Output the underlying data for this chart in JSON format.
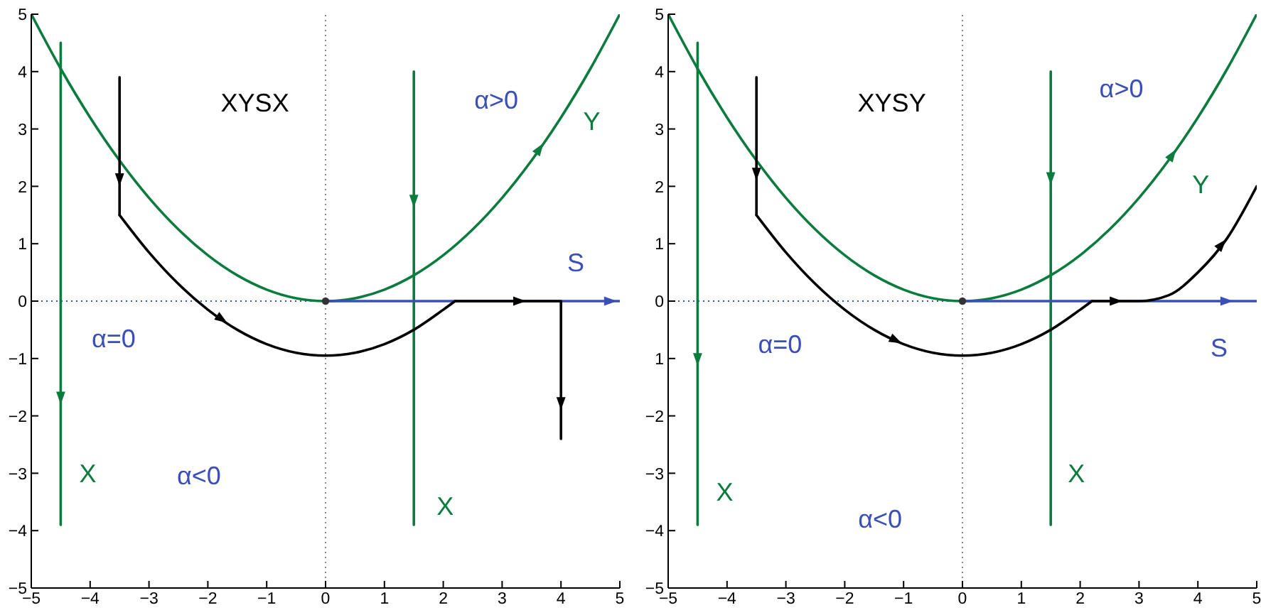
{
  "chart_data": [
    {
      "type": "line",
      "title": "XYSX",
      "xlim": [
        -5,
        5
      ],
      "ylim": [
        -5,
        5
      ],
      "xticks": [
        -5,
        -4,
        -3,
        -2,
        -1,
        0,
        1,
        2,
        3,
        4,
        5
      ],
      "yticks": [
        -5,
        -4,
        -3,
        -2,
        -1,
        0,
        1,
        2,
        3,
        4,
        5
      ],
      "marker": "none",
      "line_style": "solid",
      "ref_lines": [
        {
          "axis": "x",
          "value": 0,
          "color": "#888888",
          "line_style": "dotted"
        },
        {
          "axis": "y",
          "value": 0,
          "color": "#3a4fb8",
          "line_style": "dotted"
        }
      ],
      "series": [
        {
          "name": "Y",
          "color": "#0b7c3e",
          "x": [
            -5,
            -4.5,
            -4,
            -3.5,
            -3,
            -2.5,
            -2,
            -1.5,
            -1,
            -0.5,
            0,
            0.5,
            1,
            1.5,
            2,
            2.5,
            3,
            3.5,
            4,
            4.5,
            5
          ],
          "values": [
            5,
            4.05,
            3.2,
            2.45,
            1.8,
            1.25,
            0.8,
            0.45,
            0.2,
            0.05,
            0,
            0.05,
            0.2,
            0.45,
            0.8,
            1.25,
            1.8,
            2.45,
            3.2,
            4.05,
            5
          ]
        },
        {
          "name": "X",
          "color": "#0b7c3e",
          "x": [
            -4.5,
            -4.5
          ],
          "values": [
            4.5,
            -3.9
          ]
        },
        {
          "name": "X",
          "color": "#0b7c3e",
          "x": [
            1.5,
            1.5
          ],
          "values": [
            4,
            -3.9
          ]
        },
        {
          "name": "S",
          "color": "#3a4fb8",
          "x": [
            0,
            5
          ],
          "values": [
            0,
            0
          ]
        },
        {
          "color": "#000000",
          "x": [
            -3.5,
            -3.5
          ],
          "values": [
            3.9,
            1.5
          ]
        },
        {
          "color": "#000000",
          "x": [
            -3.5,
            -3,
            -2.5,
            -2,
            -1.5,
            -1,
            -0.5,
            0,
            0.5,
            1,
            1.5,
            2,
            2.2
          ],
          "values": [
            1.5,
            0.85,
            0.3,
            -0.15,
            -0.5,
            -0.75,
            -0.9,
            -0.95,
            -0.9,
            -0.75,
            -0.5,
            -0.15,
            0
          ]
        },
        {
          "color": "#000000",
          "x": [
            2.2,
            4,
            4
          ],
          "values": [
            0,
            0,
            -2.4
          ]
        },
        {
          "type": "scatter",
          "marker": "circle",
          "color": "#333333",
          "x": [
            0
          ],
          "values": [
            0
          ]
        }
      ],
      "annotations": [
        "α>0",
        "α=0",
        "α<0"
      ]
    },
    {
      "type": "line",
      "title": "XYSY",
      "xlim": [
        -5,
        5
      ],
      "ylim": [
        -5,
        5
      ],
      "xticks": [
        -5,
        -4,
        -3,
        -2,
        -1,
        0,
        1,
        2,
        3,
        4,
        5
      ],
      "yticks": [
        -5,
        -4,
        -3,
        -2,
        {
          "value": -1,
          "label": "1"
        },
        0,
        1,
        2,
        3,
        4,
        5
      ],
      "marker": "none",
      "line_style": "solid",
      "ref_lines": [
        {
          "axis": "x",
          "value": 0,
          "color": "#888888",
          "line_style": "dotted"
        },
        {
          "axis": "y",
          "value": 0,
          "color": "#3a4fb8",
          "line_style": "dotted"
        }
      ],
      "series": [
        {
          "color": "#0b7c3e",
          "x": [
            -5,
            -4.5,
            -4,
            -3.5,
            -3,
            -2.5,
            -2,
            -1.5,
            -1,
            -0.5,
            0,
            0.5,
            1,
            1.5,
            2,
            2.5,
            3,
            3.5,
            4,
            4.5,
            5
          ],
          "values": [
            5,
            4.05,
            3.2,
            2.45,
            1.8,
            1.25,
            0.8,
            0.45,
            0.2,
            0.05,
            0,
            0.05,
            0.2,
            0.45,
            0.8,
            1.25,
            1.8,
            2.45,
            3.2,
            4.05,
            5
          ]
        },
        {
          "name": "X",
          "color": "#0b7c3e",
          "x": [
            -4.5,
            -4.5
          ],
          "values": [
            4.5,
            -3.9
          ]
        },
        {
          "name": "X",
          "color": "#0b7c3e",
          "x": [
            1.5,
            1.5
          ],
          "values": [
            4,
            -3.9
          ]
        },
        {
          "color": "#3a4fb8",
          "x": [
            0,
            5
          ],
          "values": [
            0,
            0
          ]
        },
        {
          "color": "#000000",
          "x": [
            -3.5,
            -3.5
          ],
          "values": [
            3.9,
            1.5
          ]
        },
        {
          "color": "#000000",
          "x": [
            -3.5,
            -3,
            -2.5,
            -2,
            -1.5,
            -1,
            -0.5,
            0,
            0.5,
            1,
            1.5,
            2,
            2.2
          ],
          "values": [
            1.5,
            0.85,
            0.3,
            -0.15,
            -0.5,
            -0.75,
            -0.9,
            -0.95,
            -0.9,
            -0.75,
            -0.5,
            -0.15,
            0
          ]
        },
        {
          "color": "#000000",
          "x": [
            2.2,
            3,
            3.5,
            4,
            4.5,
            5
          ],
          "values": [
            0,
            0,
            0.1,
            0.5,
            1.1,
            2
          ]
        },
        {
          "type": "scatter",
          "marker": "circle",
          "color": "#333333",
          "x": [
            0
          ],
          "values": [
            0
          ]
        }
      ],
      "annotations": [
        "α>0",
        "α=0",
        "α<0",
        "Y",
        "S"
      ]
    }
  ]
}
